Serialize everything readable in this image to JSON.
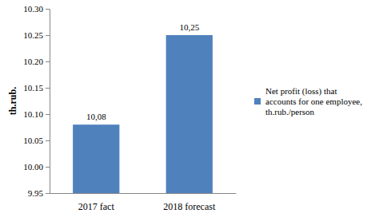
{
  "chart_data": {
    "type": "bar",
    "y_label": "th.rub.",
    "categories": [
      "2017 fact",
      "2018 forecast"
    ],
    "series": [
      {
        "name": "Net profit (loss) that accounts for one employee, th.rub./person",
        "color": "#4f81bd",
        "values": [
          10.08,
          10.25
        ],
        "value_labels": [
          "10,08",
          "10,25"
        ]
      }
    ],
    "ylim": [
      9.95,
      10.3
    ],
    "yticks": [
      9.95,
      {
        "value": 10,
        "label": "10.00"
      },
      10.05,
      {
        "value": 10.1,
        "label": "10.10"
      },
      10.15,
      {
        "value": 10.2,
        "label": "10.20"
      },
      10.25,
      {
        "value": 10.3,
        "label": "10.30"
      }
    ],
    "grid": false,
    "legend": "right",
    "data_labels": true
  }
}
